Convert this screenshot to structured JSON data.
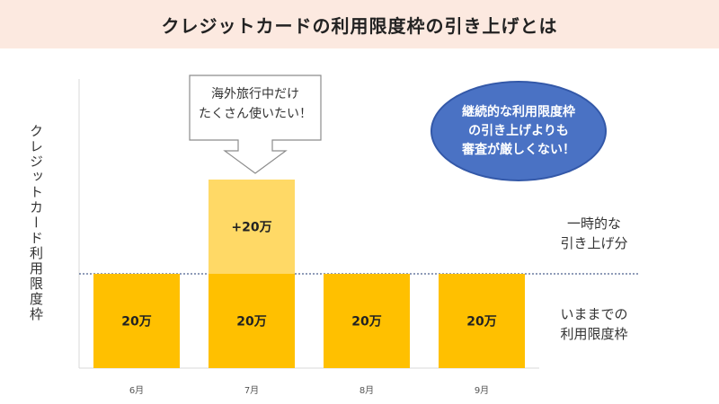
{
  "header": {
    "title": "クレジットカードの利用限度枠の引き上げとは"
  },
  "chart_data": {
    "type": "bar",
    "title": "",
    "xlabel": "",
    "ylabel": "クレジットカード利用限度枠",
    "categories": [
      "6月",
      "7月",
      "8月",
      "9月"
    ],
    "series": [
      {
        "values": [
          20,
          20,
          20,
          20
        ],
        "labels": [
          "20万",
          "20万",
          "20万",
          "20万"
        ],
        "color": "#ffc000"
      },
      {
        "values": [
          0,
          20,
          0,
          0
        ],
        "labels": [
          "",
          "+20万",
          "",
          ""
        ],
        "color": "#ffd966"
      }
    ],
    "ylim": [
      0,
      40
    ],
    "stacked": true,
    "reference_line": {
      "y": 20,
      "style": "dotted",
      "color": "#1f3a70"
    },
    "grid": false,
    "legend": "none"
  },
  "callout": {
    "lines": [
      "海外旅行中だけ",
      "たくさん使いたい！"
    ]
  },
  "bubble": {
    "lines": [
      "継続的な利用限度枠",
      "の引き上げよりも",
      "審査が厳しくない！"
    ],
    "color": "#4a72c4"
  },
  "side_labels": {
    "temporary": [
      "一時的な",
      "引き上げ分"
    ],
    "base": [
      "いままでの",
      "利用限度枠"
    ]
  }
}
